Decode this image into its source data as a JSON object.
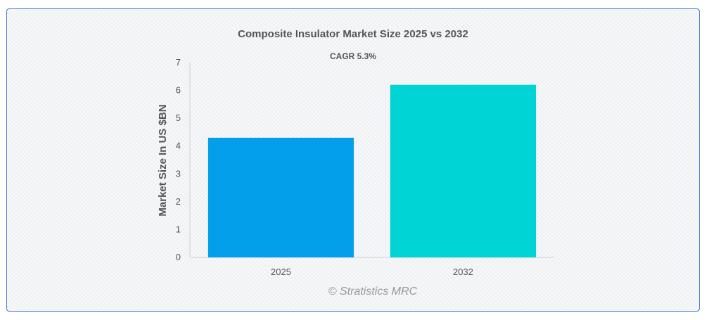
{
  "chart_data": {
    "type": "bar",
    "title": "Composite Insulator Market Size 2025 vs 2032",
    "subtitle": "CAGR 5.3%",
    "xlabel": "",
    "ylabel": "Market Size In US $BN",
    "categories": [
      "2025",
      "2032"
    ],
    "values": [
      4.3,
      6.2
    ],
    "colors": [
      "#039fea",
      "#00d4d4"
    ],
    "ylim": [
      0,
      7
    ],
    "yticks": [
      0,
      1,
      2,
      3,
      4,
      5,
      6,
      7
    ],
    "grid": false,
    "legend": "none"
  },
  "watermark": "© Stratistics MRC"
}
